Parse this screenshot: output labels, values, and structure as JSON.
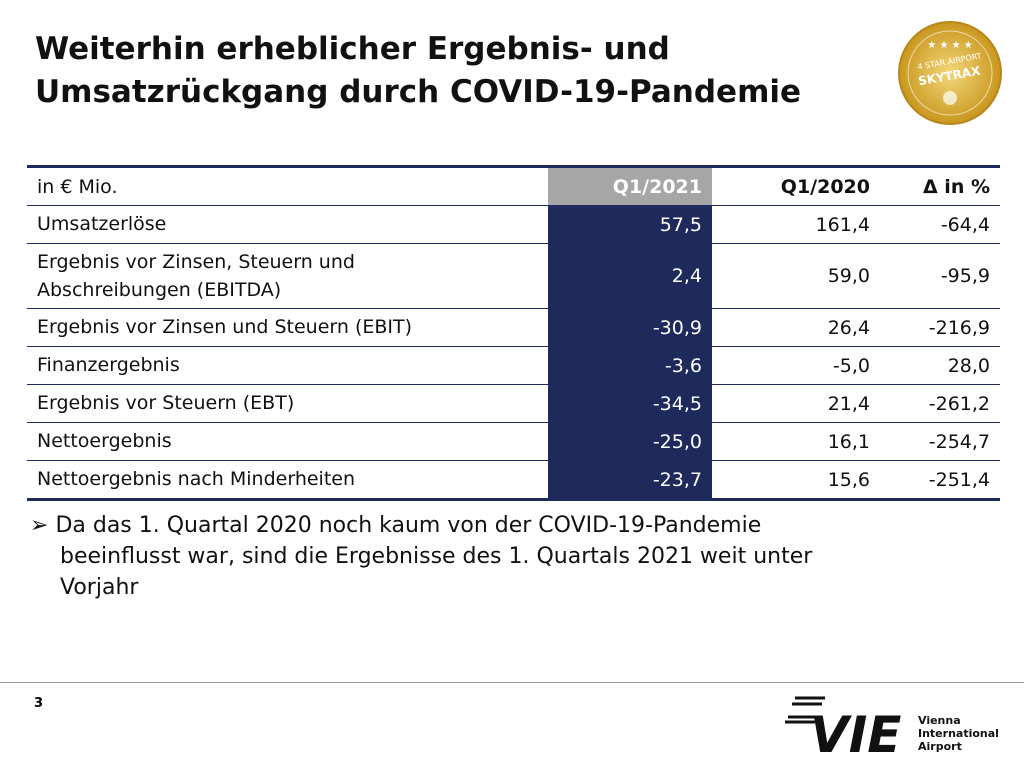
{
  "header": {
    "title_lines": [
      "Weiterhin erheblicher Ergebnis- und",
      "Umsatzrückgang durch COVID-19-Pandemie"
    ]
  },
  "badge": {
    "top": "4 STAR AIRPORT",
    "name": "SKYTRAX"
  },
  "table": {
    "columns": [
      "in € Mio.",
      "Q1/2021",
      "Q1/2020",
      "Δ in %"
    ],
    "rows": [
      [
        [
          "Umsatzerlöse"
        ],
        "57,5",
        "161,4",
        "-64,4"
      ],
      [
        [
          "Ergebnis vor Zinsen, Steuern und",
          "Abschreibungen (EBITDA)"
        ],
        "2,4",
        "59,0",
        "-95,9"
      ],
      [
        [
          "Ergebnis vor Zinsen und Steuern (EBIT)"
        ],
        "-30,9",
        "26,4",
        "-216,9"
      ],
      [
        [
          "Finanzergebnis"
        ],
        "-3,6",
        "-5,0",
        "28,0"
      ],
      [
        [
          "Ergebnis vor Steuern (EBT)"
        ],
        "-34,5",
        "21,4",
        "-261,2"
      ],
      [
        [
          "Nettoergebnis"
        ],
        "-25,0",
        "16,1",
        "-254,7"
      ],
      [
        [
          "Nettoergebnis nach Minderheiten"
        ],
        "-23,7",
        "15,6",
        "-251,4"
      ]
    ]
  },
  "bullet": {
    "lines": [
      "Da das 1. Quartal 2020 noch kaum von der COVID-19-Pandemie",
      "beeinflusst war, sind die Ergebnisse des 1. Quartals 2021 weit unter",
      "Vorjahr"
    ]
  },
  "footer": {
    "page": "3",
    "logo_mark": "VIE",
    "logo_text": [
      "Vienna",
      "International",
      "Airport"
    ]
  }
}
